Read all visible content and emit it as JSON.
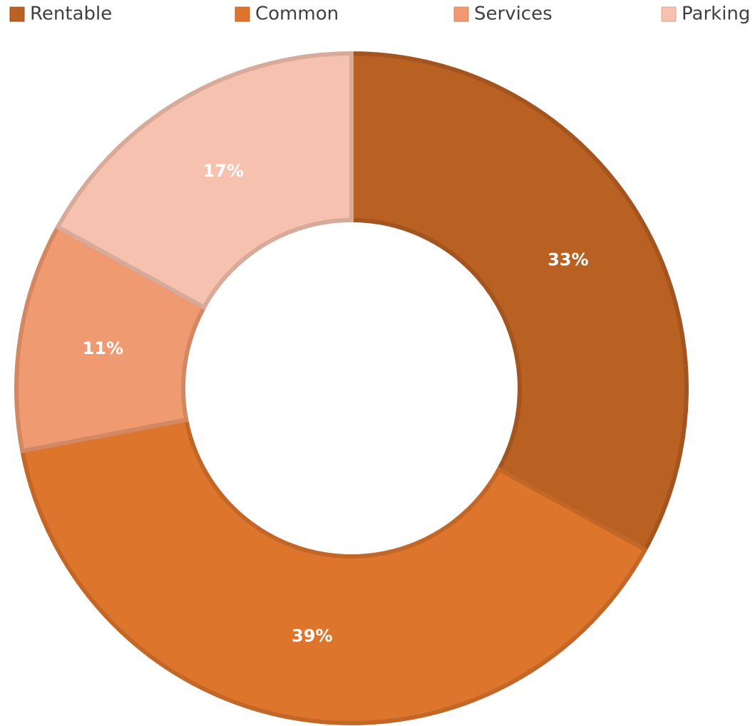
{
  "chart_data": {
    "type": "donut",
    "categories": [
      "Rentable",
      "Common",
      "Services",
      "Parking"
    ],
    "values": [
      33,
      39,
      11,
      17
    ],
    "value_labels": [
      "33%",
      "39%",
      "11%",
      "17%"
    ],
    "colors": [
      "#b96023",
      "#de752d",
      "#f09a72",
      "#f6c1ae"
    ],
    "legend": "top"
  }
}
